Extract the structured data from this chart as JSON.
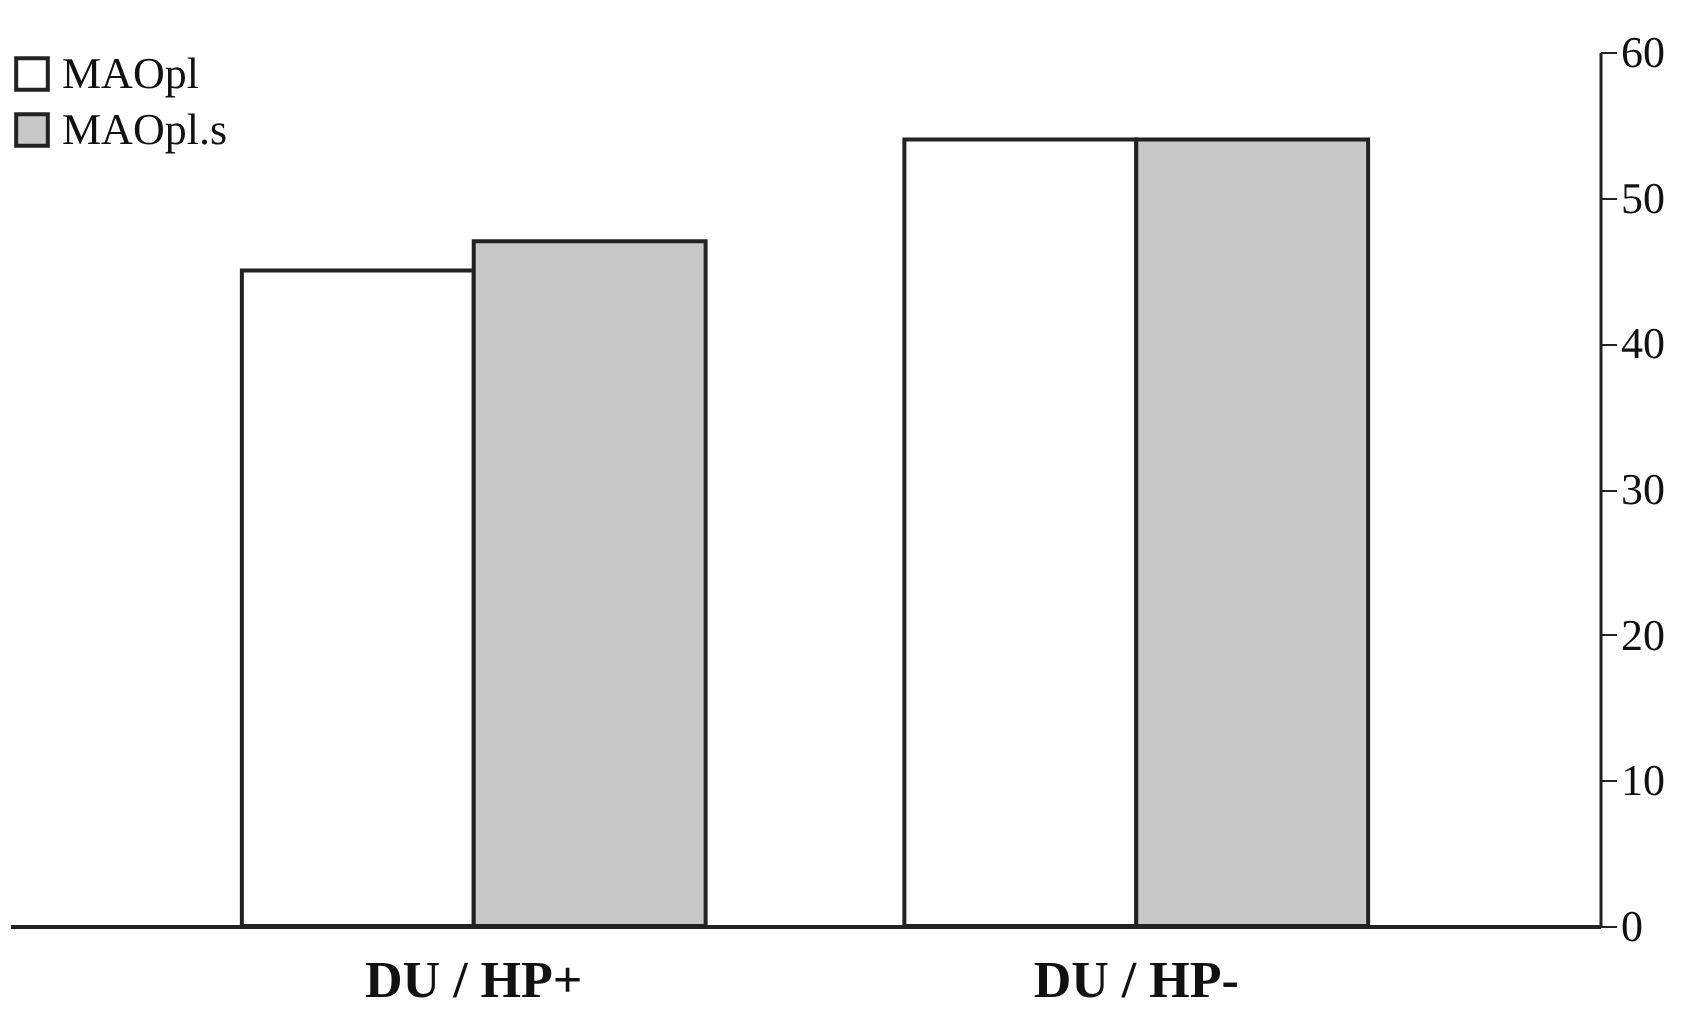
{
  "chart_data": {
    "type": "bar",
    "categories": [
      "DU / HP+",
      "DU / HP-"
    ],
    "series": [
      {
        "name": "MAOpl",
        "color": "#ffffff",
        "values": [
          45,
          54
        ]
      },
      {
        "name": "MAOpl.s",
        "color": "#c8c8c8",
        "values": [
          47,
          54
        ]
      }
    ],
    "ylim": [
      0,
      60
    ],
    "yticks": [
      0,
      10,
      20,
      30,
      40,
      50,
      60
    ],
    "grid": false,
    "legend": "top left"
  }
}
